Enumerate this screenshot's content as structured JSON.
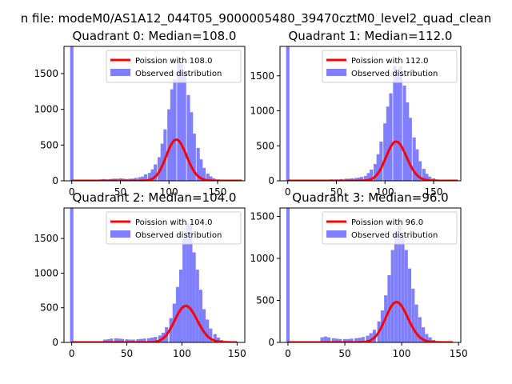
{
  "suptitle": "n file: modeM0/AS1A12_044T05_9000005480_39470cztM0_level2_quad_clean",
  "colors": {
    "observed": "#7f7fff",
    "poisson": "#ff0000",
    "axis": "#000000"
  },
  "chart_data": [
    {
      "type": "bar",
      "title": "Quadrant 0: Median=108.0",
      "xlim": [
        -8,
        178
      ],
      "ylim": [
        0,
        1880
      ],
      "xticks": [
        0,
        50,
        100,
        150
      ],
      "yticks": [
        0,
        500,
        1000,
        1500
      ],
      "bin_width": 3.4,
      "zero_bin_value": 1900,
      "observed": [
        [
          30,
          20
        ],
        [
          33,
          25
        ],
        [
          36,
          20
        ],
        [
          40,
          25
        ],
        [
          43,
          30
        ],
        [
          46,
          30
        ],
        [
          50,
          35
        ],
        [
          53,
          30
        ],
        [
          56,
          25
        ],
        [
          60,
          30
        ],
        [
          63,
          30
        ],
        [
          66,
          40
        ],
        [
          70,
          50
        ],
        [
          73,
          60
        ],
        [
          76,
          90
        ],
        [
          80,
          110
        ],
        [
          83,
          160
        ],
        [
          86,
          230
        ],
        [
          90,
          330
        ],
        [
          93,
          520
        ],
        [
          96,
          720
        ],
        [
          100,
          1000
        ],
        [
          103,
          1280
        ],
        [
          106,
          1420
        ],
        [
          110,
          1720
        ],
        [
          113,
          1630
        ],
        [
          116,
          1520
        ],
        [
          120,
          1200
        ],
        [
          123,
          960
        ],
        [
          126,
          660
        ],
        [
          130,
          460
        ],
        [
          133,
          300
        ],
        [
          136,
          180
        ],
        [
          140,
          100
        ],
        [
          143,
          60
        ],
        [
          146,
          35
        ],
        [
          150,
          20
        ],
        [
          153,
          10
        ]
      ],
      "legend": {
        "line": "Poission with 108.0",
        "bar": "Observed distribution",
        "position": "upper right"
      },
      "poisson_mean": 108,
      "poisson_x": [
        0,
        175
      ]
    },
    {
      "type": "bar",
      "title": "Quadrant 1: Median=112.0",
      "xlim": [
        -8,
        178
      ],
      "ylim": [
        0,
        1920
      ],
      "xticks": [
        0,
        50,
        100,
        150
      ],
      "yticks": [
        0,
        500,
        1000,
        1500
      ],
      "bin_width": 3.4,
      "zero_bin_value": 1950,
      "observed": [
        [
          40,
          15
        ],
        [
          45,
          20
        ],
        [
          50,
          20
        ],
        [
          55,
          25
        ],
        [
          60,
          30
        ],
        [
          63,
          30
        ],
        [
          66,
          35
        ],
        [
          70,
          40
        ],
        [
          73,
          45
        ],
        [
          76,
          55
        ],
        [
          80,
          70
        ],
        [
          83,
          110
        ],
        [
          86,
          160
        ],
        [
          90,
          240
        ],
        [
          93,
          380
        ],
        [
          96,
          560
        ],
        [
          100,
          820
        ],
        [
          103,
          1060
        ],
        [
          106,
          1250
        ],
        [
          110,
          1640
        ],
        [
          113,
          1580
        ],
        [
          116,
          1640
        ],
        [
          120,
          1360
        ],
        [
          123,
          1120
        ],
        [
          126,
          900
        ],
        [
          130,
          620
        ],
        [
          133,
          450
        ],
        [
          136,
          280
        ],
        [
          140,
          170
        ],
        [
          143,
          100
        ],
        [
          146,
          60
        ],
        [
          150,
          35
        ],
        [
          153,
          20
        ]
      ],
      "legend": {
        "line": "Poission with 112.0",
        "bar": "Observed distribution",
        "position": "upper right"
      },
      "poisson_mean": 112,
      "poisson_x": [
        0,
        175
      ]
    },
    {
      "type": "bar",
      "title": "Quadrant 2: Median=104.0",
      "xlim": [
        -7,
        157
      ],
      "ylim": [
        0,
        1940
      ],
      "xticks": [
        0,
        50,
        100,
        150
      ],
      "yticks": [
        0,
        500,
        1000,
        1500
      ],
      "bin_width": 3.0,
      "zero_bin_value": 2000,
      "observed": [
        [
          30,
          40
        ],
        [
          33,
          45
        ],
        [
          36,
          55
        ],
        [
          40,
          60
        ],
        [
          43,
          55
        ],
        [
          46,
          50
        ],
        [
          50,
          45
        ],
        [
          53,
          40
        ],
        [
          56,
          40
        ],
        [
          60,
          45
        ],
        [
          63,
          50
        ],
        [
          66,
          55
        ],
        [
          70,
          60
        ],
        [
          73,
          70
        ],
        [
          76,
          80
        ],
        [
          80,
          100
        ],
        [
          83,
          140
        ],
        [
          86,
          220
        ],
        [
          90,
          350
        ],
        [
          93,
          560
        ],
        [
          96,
          800
        ],
        [
          99,
          1050
        ],
        [
          102,
          1500
        ],
        [
          105,
          1720
        ],
        [
          108,
          1700
        ],
        [
          111,
          1300
        ],
        [
          114,
          1050
        ],
        [
          117,
          760
        ],
        [
          120,
          480
        ],
        [
          123,
          330
        ],
        [
          126,
          200
        ],
        [
          130,
          120
        ],
        [
          133,
          70
        ],
        [
          136,
          35
        ],
        [
          140,
          20
        ]
      ],
      "legend": {
        "line": "Poission with 104.0",
        "bar": "Observed distribution",
        "position": "upper right"
      },
      "poisson_mean": 104,
      "poisson_x": [
        0,
        150
      ]
    },
    {
      "type": "bar",
      "title": "Quadrant 3: Median=96.0",
      "xlim": [
        -7,
        152
      ],
      "ylim": [
        0,
        1600
      ],
      "xticks": [
        0,
        50,
        100,
        150
      ],
      "yticks": [
        0,
        500,
        1000,
        1500
      ],
      "bin_width": 2.9,
      "zero_bin_value": 1650,
      "observed": [
        [
          30,
          60
        ],
        [
          33,
          70
        ],
        [
          36,
          60
        ],
        [
          40,
          50
        ],
        [
          43,
          45
        ],
        [
          46,
          40
        ],
        [
          50,
          40
        ],
        [
          53,
          40
        ],
        [
          56,
          45
        ],
        [
          60,
          50
        ],
        [
          63,
          55
        ],
        [
          66,
          65
        ],
        [
          70,
          80
        ],
        [
          73,
          110
        ],
        [
          76,
          150
        ],
        [
          80,
          250
        ],
        [
          83,
          380
        ],
        [
          86,
          560
        ],
        [
          89,
          800
        ],
        [
          92,
          1100
        ],
        [
          95,
          1300
        ],
        [
          98,
          1390
        ],
        [
          101,
          1250
        ],
        [
          104,
          1100
        ],
        [
          107,
          880
        ],
        [
          110,
          640
        ],
        [
          113,
          450
        ],
        [
          116,
          300
        ],
        [
          119,
          180
        ],
        [
          122,
          100
        ],
        [
          125,
          60
        ],
        [
          128,
          30
        ],
        [
          131,
          15
        ]
      ],
      "legend": {
        "line": "Poission with 96.0",
        "bar": "Observed distribution",
        "position": "upper right"
      },
      "poisson_mean": 96,
      "poisson_x": [
        0,
        145
      ]
    }
  ]
}
